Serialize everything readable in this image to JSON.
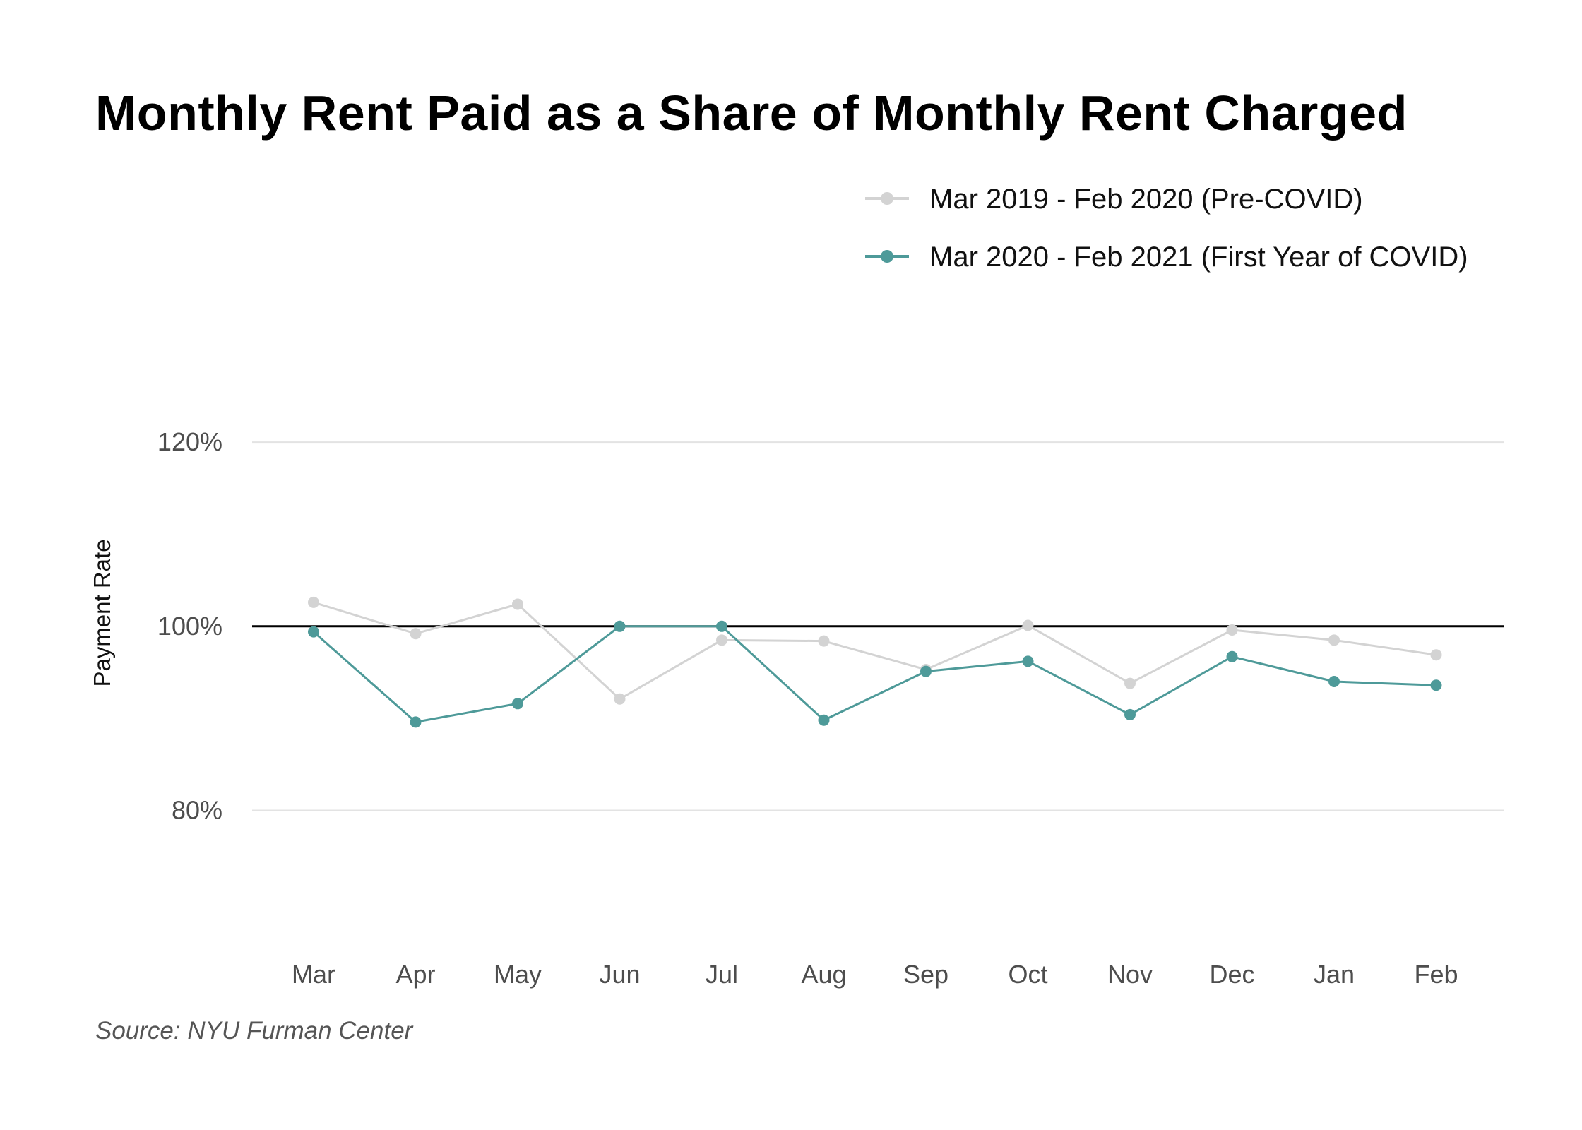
{
  "chart_data": {
    "type": "line",
    "title": "Monthly Rent Paid as a Share of Monthly Rent Charged",
    "ylabel": "Payment Rate",
    "xlabel": "",
    "categories": [
      "Mar",
      "Apr",
      "May",
      "Jun",
      "Jul",
      "Aug",
      "Sep",
      "Oct",
      "Nov",
      "Dec",
      "Jan",
      "Feb"
    ],
    "y_ticks": [
      {
        "value": 80,
        "label": "80%"
      },
      {
        "value": 100,
        "label": "100%"
      },
      {
        "value": 120,
        "label": "120%"
      }
    ],
    "ylim": [
      66,
      122
    ],
    "reference_line": 100,
    "grid": true,
    "legend_position": "top-right",
    "series": [
      {
        "name": "Mar 2019 - Feb 2020 (Pre-COVID)",
        "color": "#d3d3d3",
        "values": [
          102.6,
          99.2,
          102.4,
          92.1,
          98.5,
          98.4,
          95.3,
          100.1,
          93.8,
          99.6,
          98.5,
          96.9
        ]
      },
      {
        "name": "Mar 2020 - Feb 2021 (First Year of COVID)",
        "color": "#4e9a99",
        "values": [
          99.4,
          89.6,
          91.6,
          100.0,
          100.0,
          89.8,
          95.1,
          96.2,
          90.4,
          96.7,
          94.0,
          93.6
        ]
      }
    ],
    "source": "Source: NYU Furman Center"
  }
}
